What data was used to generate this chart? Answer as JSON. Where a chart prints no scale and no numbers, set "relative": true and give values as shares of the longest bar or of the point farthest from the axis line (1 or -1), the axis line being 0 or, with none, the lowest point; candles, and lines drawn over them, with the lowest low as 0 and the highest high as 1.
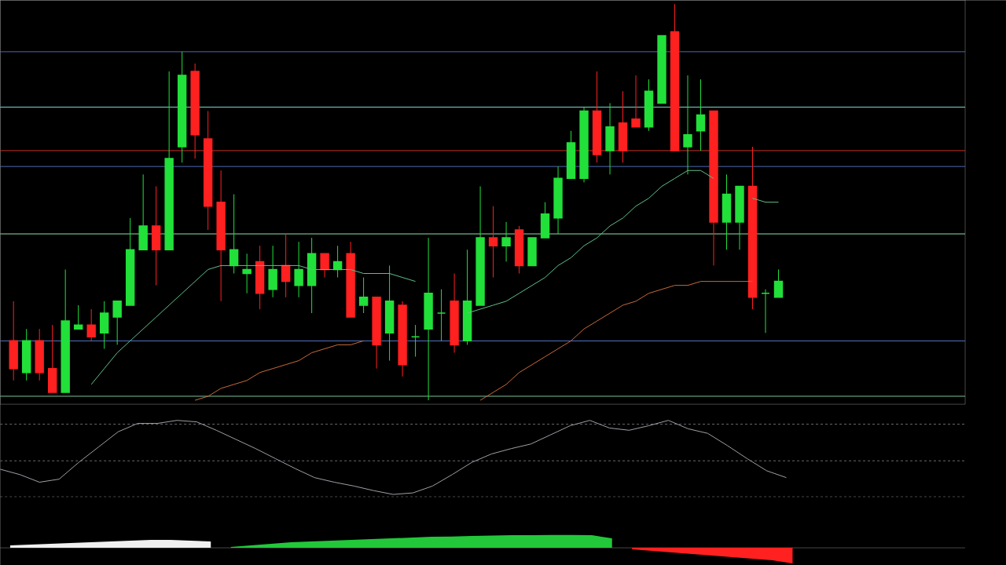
{
  "chart_data": [
    {
      "type": "candlestick",
      "relative": true,
      "categories": [
        null,
        null,
        null,
        null,
        null,
        null,
        null,
        null,
        null,
        null,
        null,
        null,
        null,
        null,
        null,
        null,
        null,
        null,
        null,
        null,
        null,
        null,
        null,
        null,
        null,
        null,
        null,
        null,
        null,
        null,
        null,
        null,
        null,
        null,
        null,
        null,
        null,
        null,
        null,
        null,
        null,
        null,
        null,
        null,
        null,
        null,
        null,
        null,
        null,
        null,
        null,
        null,
        null,
        null,
        null,
        null,
        null,
        null,
        null,
        null
      ],
      "ohlc": [
        [
          0.15,
          0.25,
          0.05,
          0.08
        ],
        [
          0.07,
          0.18,
          0.05,
          0.15
        ],
        [
          0.15,
          0.18,
          0.05,
          0.07
        ],
        [
          0.08,
          0.19,
          0.02,
          0.02
        ],
        [
          0.02,
          0.33,
          0.02,
          0.2
        ],
        [
          0.18,
          0.24,
          0.18,
          0.19
        ],
        [
          0.19,
          0.23,
          0.15,
          0.16
        ],
        [
          0.17,
          0.25,
          0.13,
          0.22
        ],
        [
          0.21,
          0.25,
          0.14,
          0.25
        ],
        [
          0.24,
          0.46,
          0.24,
          0.38
        ],
        [
          0.38,
          0.57,
          0.38,
          0.44
        ],
        [
          0.44,
          0.54,
          0.29,
          0.38
        ],
        [
          0.38,
          0.83,
          0.38,
          0.61
        ],
        [
          0.64,
          0.88,
          0.6,
          0.82
        ],
        [
          0.83,
          0.85,
          0.61,
          0.67
        ],
        [
          0.66,
          0.73,
          0.43,
          0.49
        ],
        [
          0.5,
          0.58,
          0.25,
          0.38
        ],
        [
          0.34,
          0.52,
          0.32,
          0.38
        ],
        [
          0.32,
          0.37,
          0.27,
          0.33
        ],
        [
          0.35,
          0.39,
          0.23,
          0.27
        ],
        [
          0.28,
          0.39,
          0.26,
          0.33
        ],
        [
          0.34,
          0.42,
          0.26,
          0.3
        ],
        [
          0.29,
          0.4,
          0.26,
          0.33
        ],
        [
          0.29,
          0.41,
          0.22,
          0.37
        ],
        [
          0.37,
          0.37,
          0.31,
          0.33
        ],
        [
          0.33,
          0.39,
          0.31,
          0.35
        ],
        [
          0.37,
          0.4,
          0.21,
          0.21
        ],
        [
          0.24,
          0.31,
          0.22,
          0.26
        ],
        [
          0.26,
          0.26,
          0.08,
          0.14
        ],
        [
          0.17,
          0.34,
          0.1,
          0.25
        ],
        [
          0.24,
          0.25,
          0.06,
          0.09
        ],
        [
          0.16,
          0.19,
          0.11,
          0.16
        ],
        [
          0.18,
          0.41,
          0,
          0.27
        ],
        [
          0.22,
          0.28,
          0.15,
          0.22
        ],
        [
          0.25,
          0.32,
          0.12,
          0.14
        ],
        [
          0.15,
          0.38,
          0.14,
          0.25
        ],
        [
          0.24,
          0.54,
          0.24,
          0.41
        ],
        [
          0.41,
          0.49,
          0.31,
          0.39
        ],
        [
          0.39,
          0.45,
          0.35,
          0.41
        ],
        [
          0.43,
          0.44,
          0.32,
          0.34
        ],
        [
          0.34,
          0.41,
          0.34,
          0.41
        ],
        [
          0.41,
          0.5,
          0.41,
          0.47
        ],
        [
          0.46,
          0.59,
          0.42,
          0.56
        ],
        [
          0.56,
          0.68,
          0.56,
          0.65
        ],
        [
          0.56,
          0.74,
          0.55,
          0.73
        ],
        [
          0.73,
          0.83,
          0.6,
          0.62
        ],
        [
          0.63,
          0.75,
          0.57,
          0.69
        ],
        [
          0.7,
          0.78,
          0.6,
          0.63
        ],
        [
          0.71,
          0.82,
          0.69,
          0.69
        ],
        [
          0.69,
          0.81,
          0.68,
          0.78
        ],
        [
          0.75,
          0.92,
          0.75,
          0.92
        ],
        [
          0.93,
          1,
          0.63,
          0.63
        ],
        [
          0.64,
          0.82,
          0.57,
          0.67
        ],
        [
          0.68,
          0.81,
          0.63,
          0.72
        ],
        [
          0.73,
          0.73,
          0.34,
          0.45
        ],
        [
          0.45,
          0.57,
          0.38,
          0.52
        ],
        [
          0.45,
          0.54,
          0.38,
          0.54
        ],
        [
          0.54,
          0.64,
          0.23,
          0.26
        ],
        [
          0.27,
          0.28,
          0.17,
          0.27
        ],
        [
          0.26,
          0.33,
          0.26,
          0.3
        ]
      ],
      "colors": [
        "#ff2020",
        "#22e03a",
        "#ff2020",
        "#ff2020",
        "#22e03a",
        "#22e03a",
        "#ff2020",
        "#22e03a",
        "#22e03a",
        "#22e03a",
        "#22e03a",
        "#ff2020",
        "#22e03a",
        "#22e03a",
        "#ff2020",
        "#ff2020",
        "#ff2020",
        "#22e03a",
        "#22e03a",
        "#ff2020",
        "#22e03a",
        "#ff2020",
        "#22e03a",
        "#22e03a",
        "#ff2020",
        "#22e03a",
        "#ff2020",
        "#22e03a",
        "#ff2020",
        "#22e03a",
        "#ff2020",
        "#22e03a",
        "#22e03a",
        "#22e03a",
        "#ff2020",
        "#22e03a",
        "#22e03a",
        "#ff2020",
        "#22e03a",
        "#ff2020",
        "#22e03a",
        "#22e03a",
        "#22e03a",
        "#22e03a",
        "#22e03a",
        "#ff2020",
        "#22e03a",
        "#ff2020",
        "#ff2020",
        "#22e03a",
        "#22e03a",
        "#ff2020",
        "#22e03a",
        "#22e03a",
        "#ff2020",
        "#22e03a",
        "#22e03a",
        "#ff2020",
        "#22e03a",
        "#22e03a"
      ],
      "series": [
        {
          "type": "line",
          "color": "#5fc08a",
          "values": [
            null,
            null,
            null,
            null,
            null,
            null,
            0.04,
            0.08,
            0.12,
            0.15,
            0.18,
            0.21,
            0.24,
            0.27,
            0.3,
            0.33,
            0.34,
            0.34,
            0.34,
            0.34,
            0.34,
            0.34,
            0.34,
            0.33,
            0.33,
            0.33,
            0.33,
            0.32,
            0.32,
            0.32,
            0.31,
            0.3,
            null,
            null,
            null,
            0.22,
            0.23,
            0.24,
            0.25,
            0.27,
            0.29,
            0.31,
            0.34,
            0.36,
            0.39,
            0.41,
            0.44,
            0.46,
            0.49,
            0.51,
            0.54,
            0.56,
            0.58,
            0.58,
            0.56,
            null,
            null,
            0.51,
            0.5,
            0.5
          ]
        },
        {
          "type": "line",
          "color": "#c86a3a",
          "values": [
            null,
            null,
            null,
            null,
            null,
            null,
            null,
            null,
            null,
            null,
            null,
            null,
            null,
            null,
            0,
            0.01,
            0.03,
            0.04,
            0.05,
            0.07,
            0.08,
            0.09,
            0.1,
            0.12,
            0.13,
            0.14,
            0.14,
            0.15,
            null,
            null,
            null,
            null,
            null,
            null,
            null,
            null,
            0,
            0.02,
            0.04,
            0.07,
            0.09,
            0.11,
            0.13,
            0.15,
            0.18,
            0.2,
            0.22,
            0.24,
            0.25,
            0.27,
            0.28,
            0.29,
            0.29,
            0.3,
            0.3,
            0.3,
            0.3,
            0.3,
            null,
            null
          ]
        }
      ],
      "ref_lines": [
        {
          "axis": "y",
          "value": 0.88,
          "color": "#5b7fd6"
        },
        {
          "axis": "y",
          "value": 0.74,
          "color": "#7fd8d0"
        },
        {
          "axis": "y",
          "value": 0.63,
          "color": "#e83a2a"
        },
        {
          "axis": "y",
          "value": 0.59,
          "color": "#5b7fd6"
        },
        {
          "axis": "y",
          "value": 0.42,
          "color": "#90e0b0"
        },
        {
          "axis": "y",
          "value": 0.15,
          "color": "#5b7fd6"
        },
        {
          "axis": "y",
          "value": 0.01,
          "color": "#90e0b0"
        }
      ]
    },
    {
      "type": "line",
      "relative": true,
      "color": "#a0a0a8",
      "categories": [
        null,
        null,
        null,
        null,
        null,
        null,
        null,
        null,
        null,
        null,
        null,
        null,
        null,
        null,
        null,
        null,
        null,
        null,
        null,
        null,
        null,
        null,
        null,
        null,
        null,
        null,
        null,
        null,
        null,
        null,
        null,
        null,
        null,
        null,
        null,
        null,
        null,
        null,
        null,
        null,
        null
      ],
      "values": [
        0.36,
        0.29,
        0.19,
        0.23,
        0.45,
        0.65,
        0.85,
        0.96,
        0.96,
        1,
        0.98,
        0.87,
        0.75,
        0.63,
        0.5,
        0.37,
        0.25,
        0.19,
        0.14,
        0.08,
        0.03,
        0.05,
        0.14,
        0.29,
        0.45,
        0.56,
        0.63,
        0.69,
        0.81,
        0.93,
        1,
        0.9,
        0.87,
        0.93,
        1,
        0.89,
        0.83,
        0.67,
        0.5,
        0.34,
        0.25
      ],
      "ref_lines": [
        {
          "axis": "y",
          "value": 0.95,
          "color": "#6a6a70",
          "line_style": "dashed"
        },
        {
          "axis": "y",
          "value": 0.47,
          "color": "#6a6a70",
          "line_style": "dashed"
        }
      ]
    },
    {
      "type": "area",
      "relative": true,
      "categories": [
        null,
        null,
        null,
        null,
        null,
        null,
        null,
        null,
        null,
        null,
        null,
        null,
        null,
        null,
        null,
        null,
        null,
        null,
        null,
        null,
        null,
        null,
        null,
        null,
        null,
        null,
        null,
        null,
        null,
        null,
        null,
        null,
        null,
        null,
        null,
        null,
        null,
        null,
        null,
        null
      ],
      "series": [
        {
          "color": "#f0f0f0",
          "values": [
            0.15,
            0.2,
            0.25,
            0.3,
            0.35,
            0.4,
            0.45,
            0.5,
            0.5,
            0.45,
            0.4,
            null,
            null,
            null,
            null,
            null,
            null,
            null,
            null,
            null,
            null,
            null,
            null,
            null,
            null,
            null,
            null,
            null,
            null,
            null,
            null,
            null,
            null,
            null,
            null,
            null,
            null,
            null,
            null,
            null
          ]
        },
        {
          "color": "#22c83a",
          "values": [
            null,
            null,
            null,
            null,
            null,
            null,
            null,
            null,
            null,
            null,
            null,
            0.05,
            0.15,
            0.25,
            0.35,
            0.4,
            0.45,
            0.5,
            0.55,
            0.6,
            0.65,
            0.7,
            0.72,
            0.75,
            0.78,
            0.8,
            0.8,
            0.82,
            0.82,
            0.8,
            0.6,
            null,
            null,
            null,
            null,
            null,
            null,
            null,
            null,
            null
          ]
        },
        {
          "color": "#ff2020",
          "values": [
            null,
            null,
            null,
            null,
            null,
            null,
            null,
            null,
            null,
            null,
            null,
            null,
            null,
            null,
            null,
            null,
            null,
            null,
            null,
            null,
            null,
            null,
            null,
            null,
            null,
            null,
            null,
            null,
            null,
            null,
            null,
            -0.1,
            -0.2,
            -0.3,
            -0.4,
            -0.5,
            -0.6,
            -0.7,
            -0.8,
            -1
          ]
        }
      ]
    }
  ]
}
